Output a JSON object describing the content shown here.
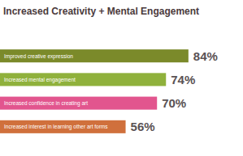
{
  "chart_data": {
    "type": "bar",
    "title": "Increased Creativity + Mental Engagement",
    "orientation": "horizontal",
    "categories": [
      "Improved creative expression",
      "Increased mental engagement",
      "Increased confidence in creating art",
      "Increased interest in learning other art forms"
    ],
    "values": [
      84,
      74,
      70,
      56
    ],
    "value_labels": [
      "84%",
      "74%",
      "70%",
      "56%"
    ],
    "colors": [
      "#7b8a2a",
      "#8fb13c",
      "#e2558e",
      "#d0703c"
    ],
    "xlim": [
      0,
      100
    ],
    "data_labels": true,
    "tick_labels": false
  }
}
